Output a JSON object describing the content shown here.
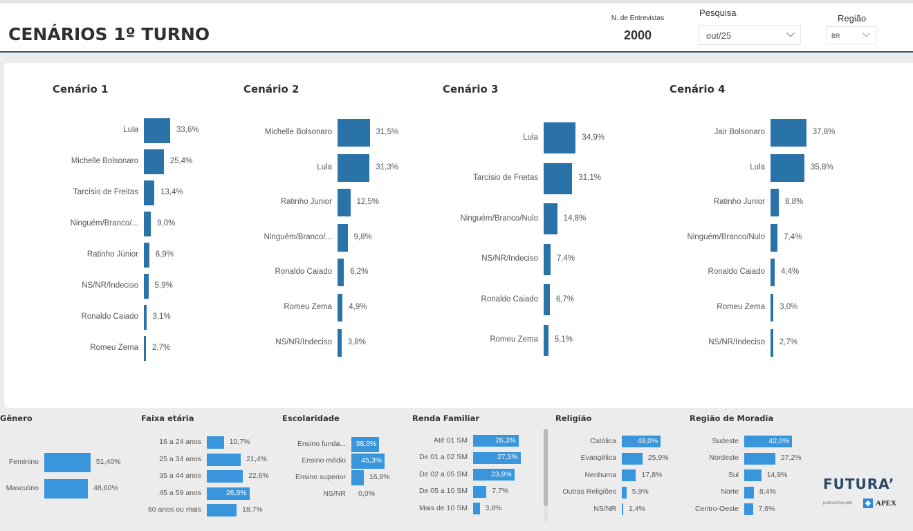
{
  "header": {
    "title": "CENÁRIOS 1º TURNO",
    "kpi_label": "N. de Entrevistas",
    "kpi_value": "2000",
    "filters": {
      "pesquisa_label": "Pesquisa",
      "pesquisa_value": "out/25",
      "regiao_label": "Região",
      "regiao_value": "BR"
    }
  },
  "chart_data": [
    {
      "type": "bar",
      "orientation": "horizontal",
      "title": "Cenário 1",
      "categories": [
        "Lula",
        "Michelle Bolsonaro",
        "Tarcísio de Freitas",
        "Ninguém/Branco/...",
        "Ratinho Júnior",
        "NS/NR/Indeciso",
        "Ronaldo Caiado",
        "Romeu Zema"
      ],
      "values": [
        33.6,
        25.4,
        13.4,
        9.0,
        6.9,
        5.9,
        3.1,
        2.7
      ],
      "labels": [
        "33,6%",
        "25,4%",
        "13,4%",
        "9,0%",
        "6,9%",
        "5,9%",
        "3,1%",
        "2,7%"
      ],
      "color": "#2a73a8"
    },
    {
      "type": "bar",
      "orientation": "horizontal",
      "title": "Cenário 2",
      "categories": [
        "Michelle Bolsonaro",
        "Lula",
        "Ratinho Junior",
        "Ninguém/Branco/...",
        "Ronaldo Caiado",
        "Romeu Zema",
        "NS/NR/Indeciso"
      ],
      "values": [
        31.5,
        31.3,
        12.5,
        9.8,
        6.2,
        4.9,
        3.8
      ],
      "labels": [
        "31,5%",
        "31,3%",
        "12,5%",
        "9,8%",
        "6,2%",
        "4,9%",
        "3,8%"
      ],
      "color": "#2a73a8"
    },
    {
      "type": "bar",
      "orientation": "horizontal",
      "title": "Cenário 3",
      "categories": [
        "Lula",
        "Tarcísio de Freitas",
        "Ninguém/Branco/Nulo",
        "NS/NR/Indeciso",
        "Ronaldo Caiado",
        "Romeu Zema"
      ],
      "values": [
        34.9,
        31.1,
        14.8,
        7.4,
        6.7,
        5.1
      ],
      "labels": [
        "34,9%",
        "31,1%",
        "14,8%",
        "7,4%",
        "6,7%",
        "5,1%"
      ],
      "color": "#2a73a8"
    },
    {
      "type": "bar",
      "orientation": "horizontal",
      "title": "Cenário 4",
      "categories": [
        "Jair Bolsonaro",
        "Lula",
        "Ratinho Junior",
        "Ninguém/Branco/Nulo",
        "Ronaldo Caiado",
        "Romeu Zema",
        "NS/NR/Indeciso"
      ],
      "values": [
        37.8,
        35.8,
        8.8,
        7.4,
        4.4,
        3.0,
        2.7
      ],
      "labels": [
        "37,8%",
        "35,8%",
        "8,8%",
        "7,4%",
        "4,4%",
        "3,0%",
        "2,7%"
      ],
      "color": "#2a73a8"
    },
    {
      "type": "bar",
      "orientation": "horizontal",
      "title": "Gênero",
      "categories": [
        "Feminino",
        "Masculino"
      ],
      "values": [
        51.4,
        48.6
      ],
      "labels": [
        "51,40%",
        "48,60%"
      ],
      "color": "#3a96dc"
    },
    {
      "type": "bar",
      "orientation": "horizontal",
      "title": "Faixa etária",
      "categories": [
        "16 a 24 anos",
        "25 a 34 anos",
        "35 a 44 anos",
        "45 a 59 anos",
        "60 anos ou mais"
      ],
      "values": [
        10.7,
        21.4,
        22.6,
        26.8,
        18.7
      ],
      "labels": [
        "10,7%",
        "21,4%",
        "22,6%",
        "26,8%",
        "18,7%"
      ],
      "color": "#3a96dc"
    },
    {
      "type": "bar",
      "orientation": "horizontal",
      "title": "Escolaridade",
      "categories": [
        "Ensino funda...",
        "Ensino médio",
        "Ensino superior",
        "NS/NR"
      ],
      "values": [
        38.0,
        45.3,
        16.8,
        0.0
      ],
      "labels": [
        "38,0%",
        "45,3%",
        "16,8%",
        "0,0%"
      ],
      "color": "#3a96dc"
    },
    {
      "type": "bar",
      "orientation": "horizontal",
      "title": "Renda Familiar",
      "categories": [
        "Até 01 SM",
        "De 01 a 02 SM",
        "De 02 a 05 SM",
        "De 05 a 10 SM",
        "Mais de 10 SM"
      ],
      "values": [
        26.3,
        27.5,
        23.9,
        7.7,
        3.8
      ],
      "labels": [
        "26,3%",
        "27,5%",
        "23,9%",
        "7,7%",
        "3,8%"
      ],
      "color": "#3a96dc"
    },
    {
      "type": "bar",
      "orientation": "horizontal",
      "title": "Religião",
      "categories": [
        "Católica",
        "Evangélica",
        "Nenhuma",
        "Outras Religiões",
        "NS/NR"
      ],
      "values": [
        49.0,
        25.9,
        17.8,
        5.9,
        1.4
      ],
      "labels": [
        "49,0%",
        "25,9%",
        "17,8%",
        "5,9%",
        "1,4%"
      ],
      "color": "#3a96dc"
    },
    {
      "type": "bar",
      "orientation": "horizontal",
      "title": "Região de Moradia",
      "categories": [
        "Sudeste",
        "Nordeste",
        "Sul",
        "Norte",
        "Centro-Oeste"
      ],
      "values": [
        42.0,
        27.2,
        14.9,
        8.4,
        7.6
      ],
      "labels": [
        "42,0%",
        "27,2%",
        "14,9%",
        "8,4%",
        "7,6%"
      ],
      "color": "#3a96dc"
    }
  ],
  "branding": {
    "logo": "FUTURA’",
    "partner_text": "partnership with",
    "partner_name": "APEX"
  }
}
